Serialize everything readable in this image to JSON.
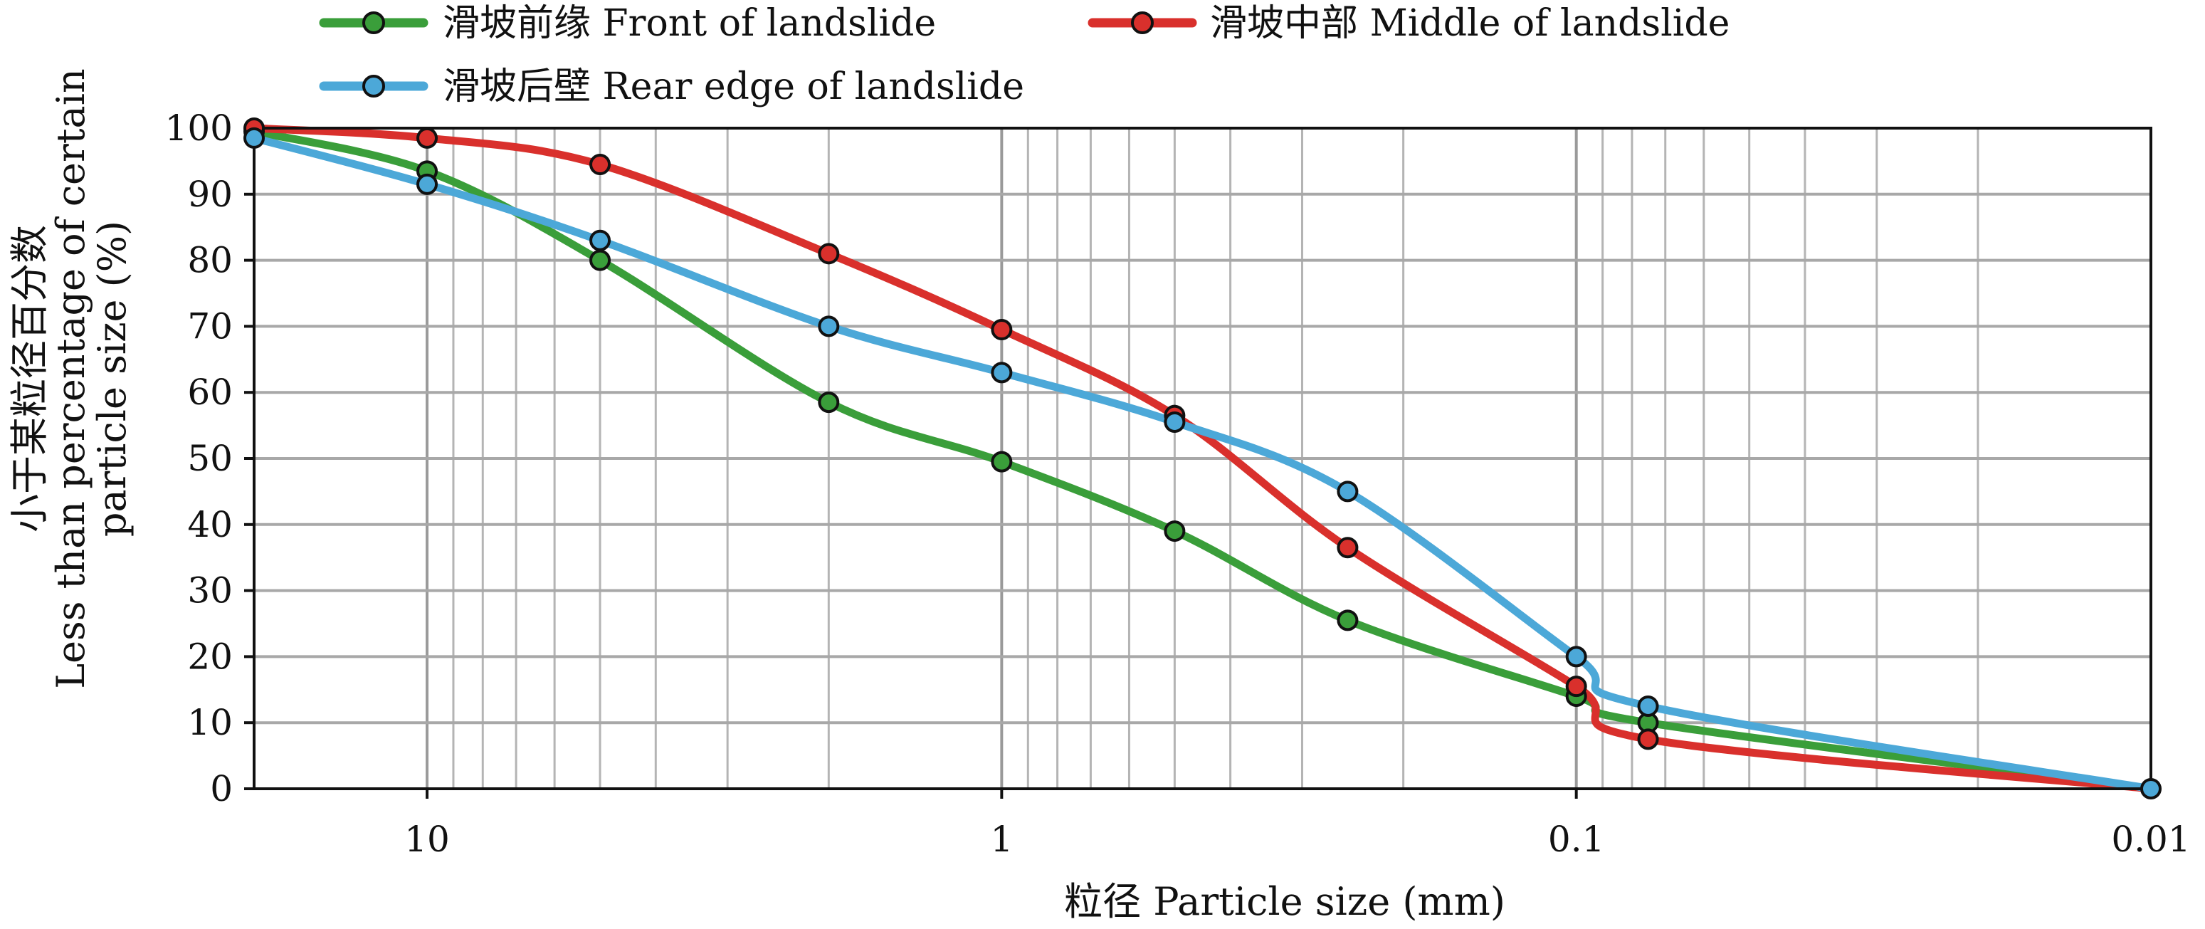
{
  "chart_data": {
    "type": "line",
    "title": "",
    "xlabel": "粒径 Particle size (mm)",
    "ylabel_line1": "小于某粒径百分数",
    "ylabel_line2": "Less than percentage of certain",
    "ylabel_line3": "particle size (%)",
    "x_scale": "log",
    "x_reversed": true,
    "xlim": [
      20,
      0.01
    ],
    "ylim": [
      0,
      100
    ],
    "x_ticks": [
      10,
      1,
      0.1,
      0.01
    ],
    "x_tick_labels": [
      "10",
      "1",
      "0.1",
      "0.01"
    ],
    "y_ticks": [
      0,
      10,
      20,
      30,
      40,
      50,
      60,
      70,
      80,
      90,
      100
    ],
    "y_tick_labels": [
      "0",
      "10",
      "20",
      "30",
      "40",
      "50",
      "60",
      "70",
      "80",
      "90",
      "100"
    ],
    "grid": true,
    "legend_position": "top",
    "series": [
      {
        "name": "滑坡前缘 Front of landslide",
        "color": "#3a9e3a",
        "x": [
          20,
          10,
          5,
          2,
          1,
          0.5,
          0.25,
          0.1,
          0.075,
          0.01
        ],
        "y": [
          99.5,
          93.5,
          80,
          58.5,
          49.5,
          39,
          25.5,
          14,
          10,
          0
        ]
      },
      {
        "name": "滑坡中部 Middle of landslide",
        "color": "#d9302c",
        "x": [
          20,
          10,
          5,
          2,
          1,
          0.5,
          0.25,
          0.1,
          0.075,
          0.01
        ],
        "y": [
          100,
          98.5,
          94.5,
          81,
          69.5,
          56.5,
          36.5,
          15.5,
          7.5,
          0
        ]
      },
      {
        "name": "滑坡后壁 Rear edge of landslide",
        "color": "#4ca8d8",
        "x": [
          20,
          10,
          5,
          2,
          1,
          0.5,
          0.25,
          0.1,
          0.075,
          0.01
        ],
        "y": [
          98.5,
          91.5,
          83,
          70,
          63,
          55.5,
          45,
          20,
          12.5,
          0
        ]
      }
    ]
  }
}
